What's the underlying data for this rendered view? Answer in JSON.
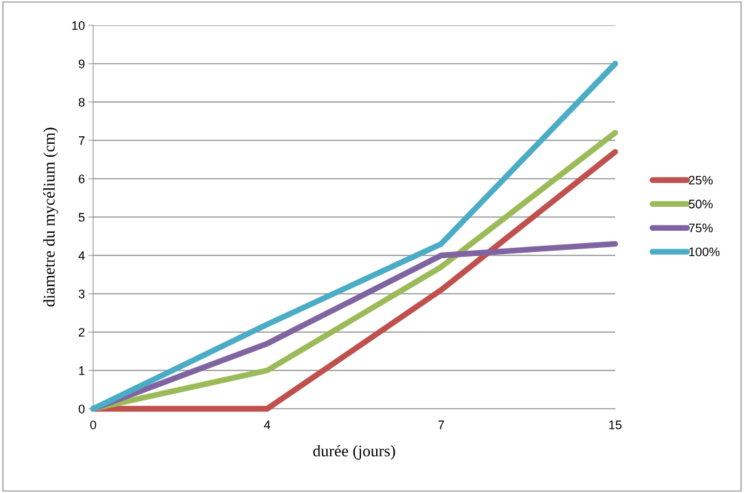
{
  "chart_data": {
    "type": "line",
    "xlabel": "durée (jours)",
    "ylabel": "diametre du mycélium (cm)",
    "categories": [
      "0",
      "4",
      "7",
      "15"
    ],
    "series": [
      {
        "name": "25%",
        "color": "#c0504d",
        "values": [
          0,
          0,
          3.1,
          6.7
        ]
      },
      {
        "name": "50%",
        "color": "#9bbb59",
        "values": [
          0,
          1,
          3.7,
          7.2
        ]
      },
      {
        "name": "75%",
        "color": "#8064a2",
        "values": [
          0,
          1.7,
          4.0,
          4.3
        ]
      },
      {
        "name": "100%",
        "color": "#4bacc6",
        "values": [
          0,
          2.2,
          4.3,
          9.0
        ]
      }
    ],
    "ylim": [
      0,
      10
    ],
    "yticks": [
      0,
      1,
      2,
      3,
      4,
      5,
      6,
      7,
      8,
      9,
      10
    ],
    "grid": "y",
    "legend": "right",
    "marker": "none",
    "line_style": "solid"
  }
}
